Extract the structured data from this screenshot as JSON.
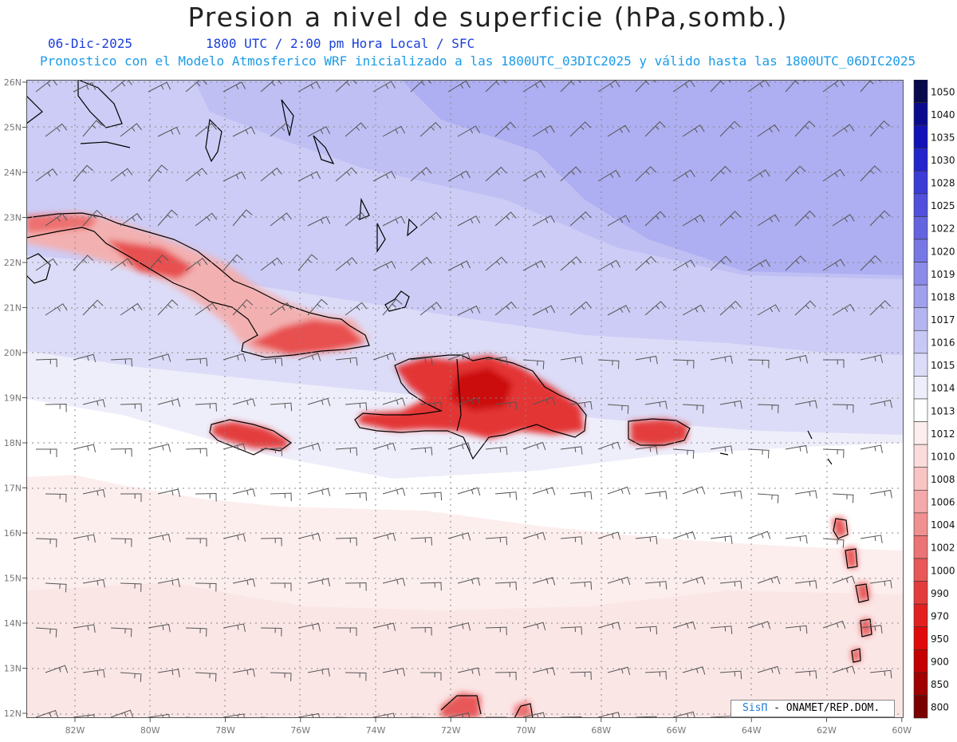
{
  "title": "Presion a nivel de superficie (hPa,somb.)",
  "date": "06-Dic-2025",
  "valid_time": "1800 UTC / 2:00 pm Hora Local / SFC",
  "description": "Pronostico con el Modelo Atmosferico WRF inicializado a las 1800UTC_03DIC2025 y válido hasta las  1800UTC_06DIC2025",
  "credit": {
    "brand": "SisΠ",
    "text": " - ONAMET/REP.DOM."
  },
  "map": {
    "lon_labels": [
      "82W",
      "80W",
      "78W",
      "76W",
      "74W",
      "72W",
      "70W",
      "68W",
      "66W",
      "64W",
      "62W",
      "60W"
    ],
    "lat_labels": [
      "26N",
      "25N",
      "24N",
      "23N",
      "22N",
      "21N",
      "20N",
      "19N",
      "18N",
      "17N",
      "16N",
      "15N",
      "14N",
      "13N",
      "12N"
    ],
    "lon_range": [
      -83.2,
      -59.9
    ],
    "lat_range": [
      11.9,
      26.05
    ]
  },
  "colorbar": {
    "levels": [
      "1050",
      "1040",
      "1035",
      "1030",
      "1028",
      "1025",
      "1022",
      "1020",
      "1019",
      "1018",
      "1017",
      "1016",
      "1015",
      "1014",
      "1013",
      "1012",
      "1010",
      "1008",
      "1006",
      "1004",
      "1002",
      "1000",
      "990",
      "970",
      "950",
      "900",
      "850",
      "800"
    ],
    "colors": [
      "#080a4c",
      "#0a0b8c",
      "#1212b8",
      "#2424cc",
      "#3b3bd6",
      "#5050dc",
      "#6464e0",
      "#7878e4",
      "#8c8ce8",
      "#a0a0ec",
      "#b4b4f0",
      "#c8c8f4",
      "#dcdcf8",
      "#eeeefb",
      "#ffffff",
      "#fdeeee",
      "#fbdcdc",
      "#f8c4c4",
      "#f4aaaa",
      "#f09090",
      "#ec7474",
      "#e85858",
      "#e43c3c",
      "#e22020",
      "#e00a0a",
      "#c40000",
      "#a00000",
      "#7a0000"
    ]
  }
}
